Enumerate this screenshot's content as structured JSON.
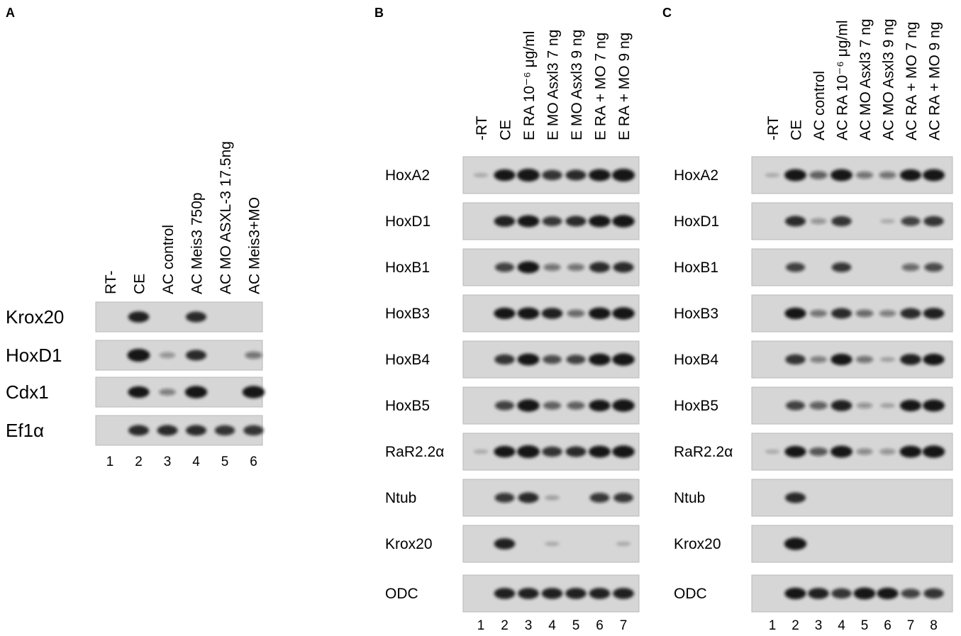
{
  "panels": [
    {
      "letter": "A",
      "lane_labels": [
        "RT-",
        "CE",
        "AC control",
        "AC Meis3 750p",
        "AC MO ASXL-3 17.5ng",
        "AC Meis3+MO"
      ],
      "lane_numbers": [
        "1",
        "2",
        "3",
        "4",
        "5",
        "6"
      ],
      "rows": [
        {
          "label": "Krox20",
          "intensities": [
            0,
            0.8,
            0,
            0.75,
            0,
            0
          ]
        },
        {
          "label": "HoxD1",
          "intensities": [
            0,
            1.0,
            0.2,
            0.75,
            0,
            0.35
          ]
        },
        {
          "label": "Cdx1",
          "intensities": [
            0,
            0.85,
            0.3,
            0.95,
            0,
            0.95
          ]
        },
        {
          "label": "Ef1α",
          "intensities": [
            0,
            0.75,
            0.75,
            0.75,
            0.7,
            0.7
          ]
        }
      ]
    },
    {
      "letter": "B",
      "lane_labels": [
        "-RT",
        "CE",
        "E RA 10⁻⁶ μg/ml",
        "E MO Asxl3 7 ng",
        "E MO Asxl3 9 ng",
        "E RA + MO 7 ng",
        "E RA + MO 9 ng"
      ],
      "lane_numbers": [
        "1",
        "2",
        "3",
        "4",
        "5",
        "6",
        "7"
      ],
      "rows": [
        {
          "label": "HoxA2",
          "intensities": [
            0.05,
            0.85,
            1.0,
            0.7,
            0.75,
            0.9,
            1.0
          ]
        },
        {
          "label": "HoxD1",
          "intensities": [
            0,
            0.8,
            0.9,
            0.65,
            0.75,
            0.9,
            0.95
          ]
        },
        {
          "label": "HoxB1",
          "intensities": [
            0,
            0.6,
            0.9,
            0.35,
            0.35,
            0.75,
            0.75
          ]
        },
        {
          "label": "HoxB3",
          "intensities": [
            0,
            0.85,
            0.9,
            0.8,
            0.4,
            0.9,
            0.95
          ]
        },
        {
          "label": "HoxB4",
          "intensities": [
            0,
            0.7,
            0.9,
            0.55,
            0.6,
            0.9,
            0.95
          ]
        },
        {
          "label": "HoxB5",
          "intensities": [
            0,
            0.6,
            0.95,
            0.45,
            0.45,
            0.85,
            0.95
          ]
        },
        {
          "label": "RaR2.2α",
          "intensities": [
            0.05,
            0.85,
            1.0,
            0.7,
            0.75,
            0.9,
            0.95
          ]
        },
        {
          "label": "Ntub",
          "intensities": [
            0,
            0.65,
            0.75,
            0.1,
            0,
            0.65,
            0.65
          ]
        },
        {
          "label": "Krox20",
          "intensities": [
            0,
            0.8,
            0,
            0.05,
            0,
            0,
            0.05
          ]
        },
        {
          "label": "ODC",
          "intensities": [
            0,
            0.8,
            0.8,
            0.8,
            0.8,
            0.8,
            0.8
          ]
        }
      ]
    },
    {
      "letter": "C",
      "lane_labels": [
        "-RT",
        "CE",
        "AC control",
        "AC RA 10⁻⁶ μg/ml",
        "AC MO Asxl3 7 ng",
        "AC MO Asxl3 9 ng",
        "AC RA + MO 7 ng",
        "AC RA + MO 9 ng"
      ],
      "lane_numbers": [
        "1",
        "2",
        "3",
        "4",
        "5",
        "6",
        "7",
        "8"
      ],
      "rows": [
        {
          "label": "HoxA2",
          "intensities": [
            0.05,
            0.9,
            0.45,
            0.9,
            0.35,
            0.35,
            0.85,
            0.9
          ]
        },
        {
          "label": "HoxD1",
          "intensities": [
            0,
            0.75,
            0.2,
            0.7,
            0,
            0.05,
            0.6,
            0.7
          ]
        },
        {
          "label": "HoxB1",
          "intensities": [
            0,
            0.6,
            0,
            0.65,
            0,
            0,
            0.4,
            0.55
          ]
        },
        {
          "label": "HoxB3",
          "intensities": [
            0,
            0.85,
            0.35,
            0.75,
            0.4,
            0.3,
            0.75,
            0.8
          ]
        },
        {
          "label": "HoxB4",
          "intensities": [
            0,
            0.7,
            0.3,
            0.85,
            0.35,
            0.1,
            0.8,
            0.85
          ]
        },
        {
          "label": "HoxB5",
          "intensities": [
            0,
            0.6,
            0.45,
            0.8,
            0.2,
            0.1,
            0.85,
            0.9
          ]
        },
        {
          "label": "RaR2.2α",
          "intensities": [
            0.05,
            0.85,
            0.5,
            0.9,
            0.25,
            0.2,
            0.9,
            0.95
          ]
        },
        {
          "label": "Ntub",
          "intensities": [
            0,
            0.75,
            0,
            0,
            0,
            0,
            0,
            0
          ]
        },
        {
          "label": "Krox20",
          "intensities": [
            0,
            0.95,
            0,
            0,
            0,
            0,
            0,
            0
          ]
        },
        {
          "label": "ODC",
          "intensities": [
            0,
            0.85,
            0.8,
            0.7,
            0.9,
            0.85,
            0.6,
            0.7
          ]
        }
      ]
    }
  ],
  "colors": {
    "band": "#141414",
    "gel_background": "#d6d6d6",
    "text": "#1c1c1c"
  }
}
